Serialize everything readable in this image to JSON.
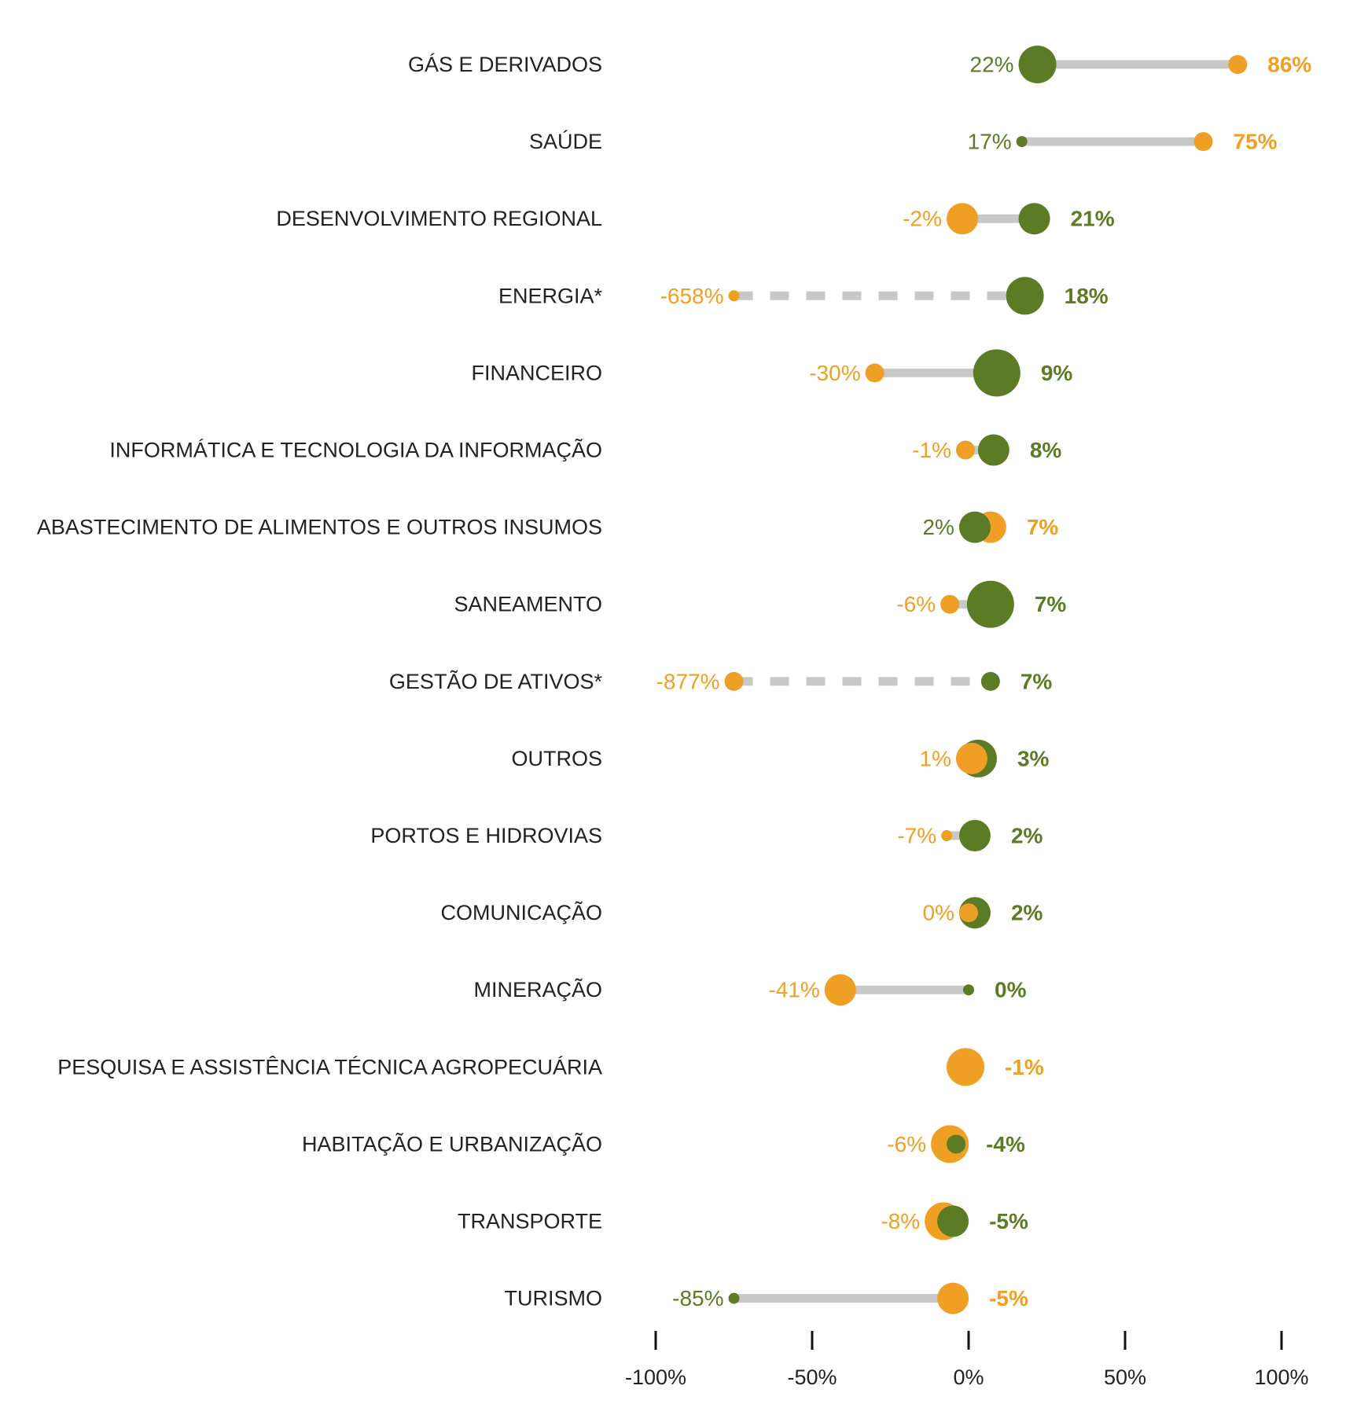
{
  "chart_data": {
    "type": "dumbbell",
    "title": "",
    "xlabel": "",
    "ylabel": "",
    "xlim": [
      -100,
      100
    ],
    "ticks": [
      {
        "value": -100,
        "label": "-100%"
      },
      {
        "value": -50,
        "label": "-50%"
      },
      {
        "value": 0,
        "label": "0%"
      },
      {
        "value": 50,
        "label": "50%"
      },
      {
        "value": 100,
        "label": "100%"
      }
    ],
    "colors": {
      "orange": "#ef9f24",
      "green": "#5b7b25",
      "connector": "#c8c8c8",
      "text": "#222222"
    },
    "rows": [
      {
        "category": "GÁS E DERIVADOS",
        "dashed": false,
        "orange": {
          "value": 86,
          "label": "86%",
          "size": "small",
          "bold": true
        },
        "green": {
          "value": 22,
          "label": "22%",
          "size": "large",
          "bold": false
        }
      },
      {
        "category": "SAÚDE",
        "dashed": false,
        "orange": {
          "value": 75,
          "label": "75%",
          "size": "small",
          "bold": true
        },
        "green": {
          "value": 17,
          "label": "17%",
          "size": "tiny",
          "bold": false
        }
      },
      {
        "category": "DESENVOLVIMENTO REGIONAL",
        "dashed": false,
        "orange": {
          "value": -2,
          "label": "-2%",
          "size": "medium",
          "bold": false
        },
        "green": {
          "value": 21,
          "label": "21%",
          "size": "medium",
          "bold": true
        }
      },
      {
        "category": "ENERGIA*",
        "dashed": true,
        "orange": {
          "value": -658,
          "label": "-658%",
          "size": "tiny",
          "bold": false,
          "plot_at": -75
        },
        "green": {
          "value": 18,
          "label": "18%",
          "size": "large",
          "bold": true
        }
      },
      {
        "category": "FINANCEIRO",
        "dashed": false,
        "orange": {
          "value": -30,
          "label": "-30%",
          "size": "small",
          "bold": false
        },
        "green": {
          "value": 9,
          "label": "9%",
          "size": "xlarge",
          "bold": true
        }
      },
      {
        "category": "INFORMÁTICA E TECNOLOGIA DA INFORMAÇÃO",
        "dashed": false,
        "orange": {
          "value": -1,
          "label": "-1%",
          "size": "small",
          "bold": false
        },
        "green": {
          "value": 8,
          "label": "8%",
          "size": "medium",
          "bold": true
        }
      },
      {
        "category": "ABASTECIMENTO DE ALIMENTOS E OUTROS INSUMOS",
        "dashed": false,
        "orange": {
          "value": 7,
          "label": "7%",
          "size": "medium",
          "bold": true
        },
        "green": {
          "value": 2,
          "label": "2%",
          "size": "medium",
          "bold": false
        }
      },
      {
        "category": "SANEAMENTO",
        "dashed": false,
        "orange": {
          "value": -6,
          "label": "-6%",
          "size": "small",
          "bold": false
        },
        "green": {
          "value": 7,
          "label": "7%",
          "size": "xlarge",
          "bold": true
        }
      },
      {
        "category": "GESTÃO DE ATIVOS*",
        "dashed": true,
        "orange": {
          "value": -877,
          "label": "-877%",
          "size": "small",
          "bold": false,
          "plot_at": -75
        },
        "green": {
          "value": 7,
          "label": "7%",
          "size": "small",
          "bold": true
        }
      },
      {
        "category": "OUTROS",
        "dashed": false,
        "orange": {
          "value": 1,
          "label": "1%",
          "size": "medium",
          "bold": false
        },
        "green": {
          "value": 3,
          "label": "3%",
          "size": "large",
          "bold": true
        }
      },
      {
        "category": "PORTOS E HIDROVIAS",
        "dashed": false,
        "orange": {
          "value": -7,
          "label": "-7%",
          "size": "tiny",
          "bold": false
        },
        "green": {
          "value": 2,
          "label": "2%",
          "size": "medium",
          "bold": true
        }
      },
      {
        "category": "COMUNICAÇÃO",
        "dashed": false,
        "orange": {
          "value": 0,
          "label": "0%",
          "size": "small",
          "bold": false
        },
        "green": {
          "value": 2,
          "label": "2%",
          "size": "medium",
          "bold": true
        }
      },
      {
        "category": "MINERAÇÃO",
        "dashed": false,
        "orange": {
          "value": -41,
          "label": "-41%",
          "size": "medium",
          "bold": false
        },
        "green": {
          "value": 0,
          "label": "0%",
          "size": "tiny",
          "bold": true
        }
      },
      {
        "category": "PESQUISA E ASSISTÊNCIA TÉCNICA AGROPECUÁRIA",
        "dashed": false,
        "orange": {
          "value": -1,
          "label": "-1%",
          "size": "large",
          "bold": true
        },
        "green": null
      },
      {
        "category": "HABITAÇÃO E URBANIZAÇÃO",
        "dashed": false,
        "orange": {
          "value": -6,
          "label": "-6%",
          "size": "large",
          "bold": false
        },
        "green": {
          "value": -4,
          "label": "-4%",
          "size": "small",
          "bold": true
        }
      },
      {
        "category": "TRANSPORTE",
        "dashed": false,
        "orange": {
          "value": -8,
          "label": "-8%",
          "size": "large",
          "bold": false
        },
        "green": {
          "value": -5,
          "label": "-5%",
          "size": "medium",
          "bold": true
        }
      },
      {
        "category": "TURISMO",
        "dashed": false,
        "orange": {
          "value": -5,
          "label": "-5%",
          "size": "medium",
          "bold": true
        },
        "green": {
          "value": -85,
          "label": "-85%",
          "size": "tiny",
          "bold": false,
          "plot_at": -75
        }
      }
    ]
  }
}
